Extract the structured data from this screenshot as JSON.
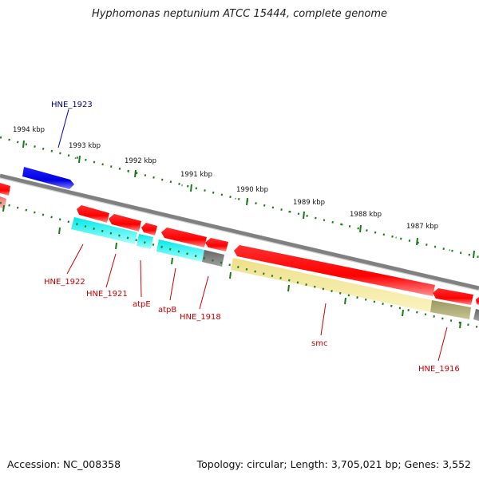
{
  "title": "Hyphomonas neptunium ATCC 15444, complete genome",
  "footer": {
    "accession": "Accession: NC_008358",
    "topology": "Topology: circular; Length: 3,705,021 bp; Genes: 3,552"
  },
  "colors": {
    "backbone": "#808080",
    "ruler_ticks": "#1a7a1a",
    "forward_gene_highlight": "#1010e0",
    "forward_gene_label": "#00008b",
    "reverse_gene": "#ff0000",
    "reverse_gene_label": "#cc0000",
    "cds_cyan": "#00e0e0",
    "cds_khaki": "#f0e68c",
    "cds_olive": "#9e9a5e",
    "cds_gray": "#707070",
    "faded_red": "#f08080"
  },
  "ruler_labels": [
    "1994 kbp",
    "1993 kbp",
    "1992 kbp",
    "1991 kbp",
    "1990 kbp",
    "1989 kbp",
    "1988 kbp",
    "1987 kbp"
  ],
  "gene_labels": [
    {
      "text": "HNE_1923",
      "strand": "forward"
    },
    {
      "text": "HNE_1922",
      "strand": "reverse"
    },
    {
      "text": "HNE_1921",
      "strand": "reverse"
    },
    {
      "text": "atpE",
      "strand": "reverse"
    },
    {
      "text": "atpB",
      "strand": "reverse"
    },
    {
      "text": "HNE_1918",
      "strand": "reverse"
    },
    {
      "text": "smc",
      "strand": "reverse"
    },
    {
      "text": "HNE_1916",
      "strand": "reverse"
    }
  ]
}
